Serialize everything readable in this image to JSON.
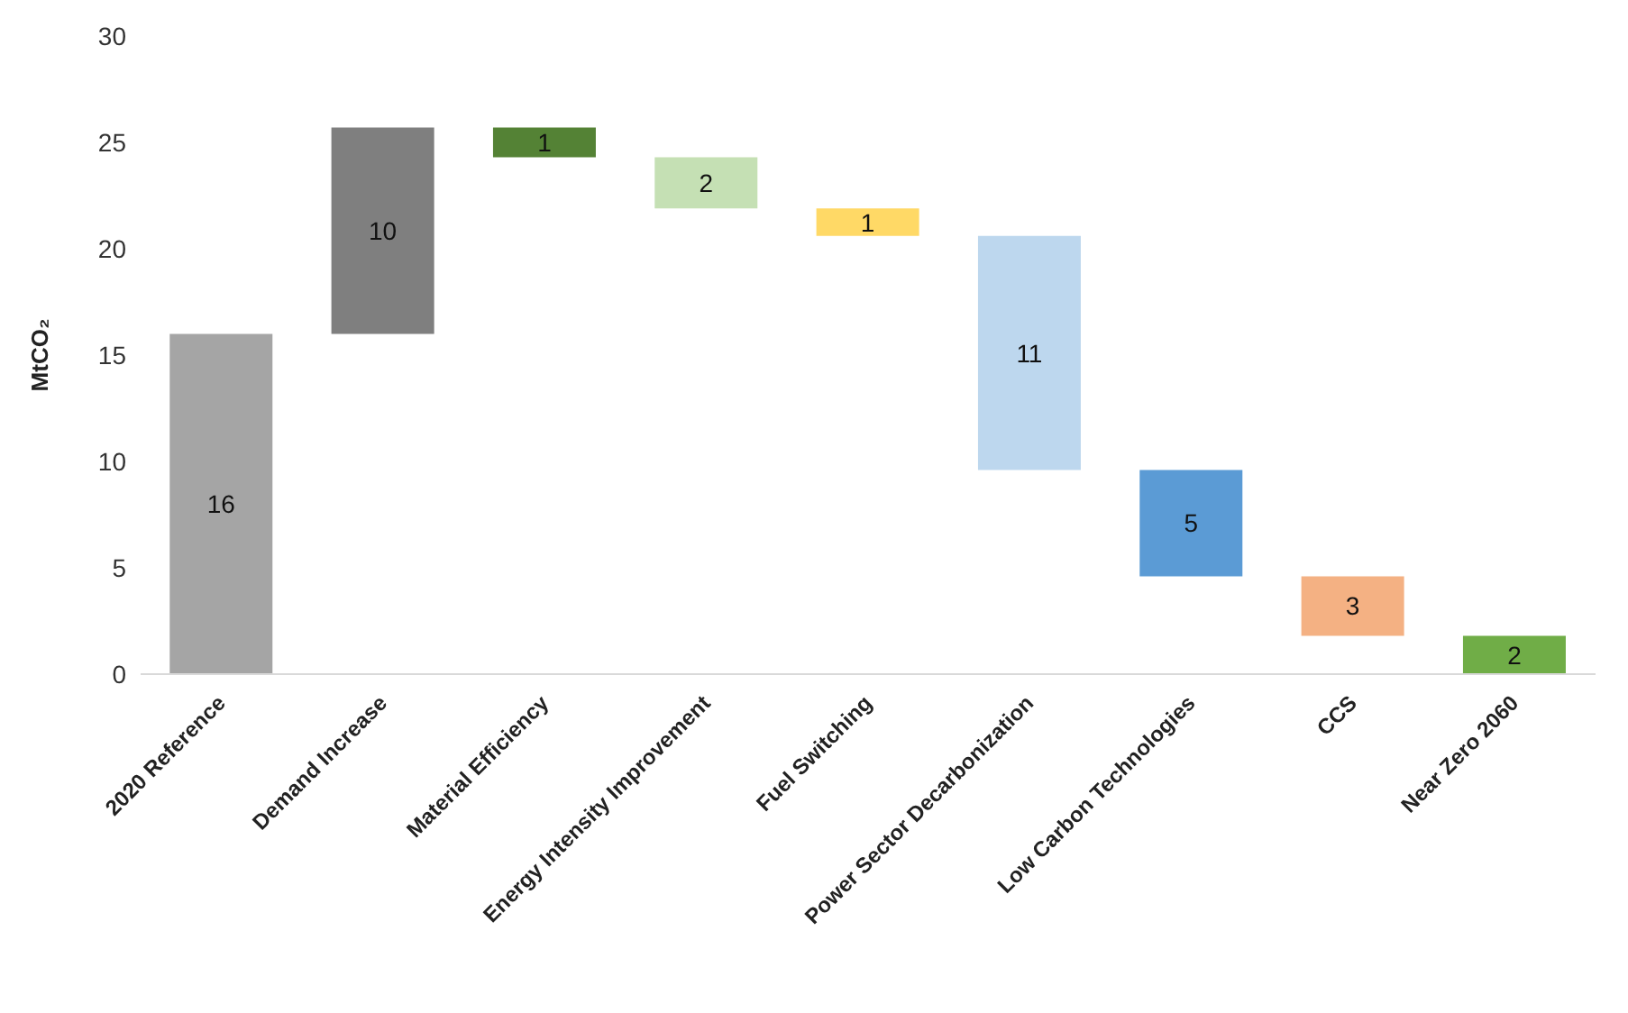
{
  "chart_data": {
    "type": "bar",
    "ylabel": "MtCO₂",
    "categories": [
      "2020 Reference",
      "Demand Increase",
      "Material Efficiency",
      "Energy Intensity Improvement",
      "Fuel Switching",
      "Power Sector Decarbonization",
      "Low Carbon Technologies",
      "CCS",
      "Near Zero 2060"
    ],
    "base": [
      0,
      16,
      25.7,
      24.3,
      21.9,
      20.6,
      9.6,
      4.6,
      0
    ],
    "values": [
      16,
      9.7,
      -1.4,
      -2.4,
      -1.3,
      -11.0,
      -5.0,
      -2.8,
      1.8
    ],
    "value_labels": [
      "16",
      "10",
      "1",
      "2",
      "1",
      "11",
      "5",
      "3",
      "2"
    ],
    "colors": [
      "#a5a5a5",
      "#7f7f7f",
      "#548235",
      "#c5e0b4",
      "#ffd966",
      "#bdd7ee",
      "#5b9bd5",
      "#f4b183",
      "#70ad47"
    ],
    "ylim": [
      0,
      30
    ],
    "yticks": [
      0,
      5,
      10,
      15,
      20,
      25,
      30
    ],
    "grid": false,
    "legend": false
  }
}
